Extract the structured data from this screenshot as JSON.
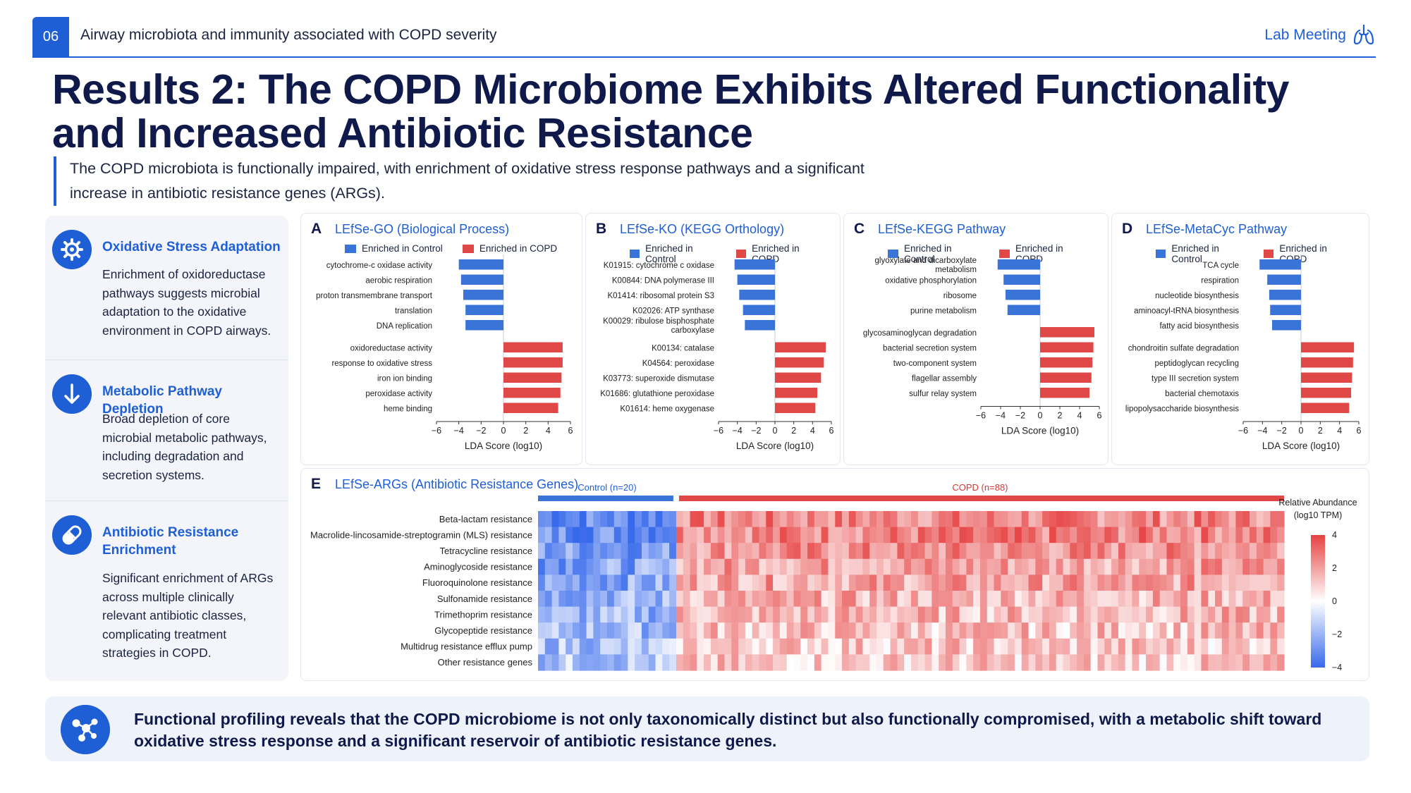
{
  "header": {
    "slide_number": "06",
    "title": "Airway microbiota and immunity associated with COPD severity",
    "right_label": "Lab Meeting",
    "icon": "lungs-icon"
  },
  "title": "Results 2: The COPD Microbiome Exhibits Altered Functionality and Increased Antibiotic Resistance",
  "subtitle": "The COPD microbiota is functionally impaired, with enrichment of oxidative stress response pathways and a significant increase in antibiotic resistance genes (ARGs).",
  "sidebar": [
    {
      "icon": "gear-icon",
      "heading": "Oxidative Stress Adaptation",
      "text": "Enrichment of oxidoreductase pathways suggests microbial adaptation to the oxidative environment in COPD airways."
    },
    {
      "icon": "arrow-down-icon",
      "heading": "Metabolic Pathway Depletion",
      "text": "Broad depletion of core microbial metabolic pathways, including degradation and secretion systems."
    },
    {
      "icon": "pill-icon",
      "heading": "Antibiotic Resistance Enrichment",
      "text": "Significant enrichment of ARGs across multiple clinically relevant antibiotic classes, complicating treatment strategies in COPD."
    }
  ],
  "colors": {
    "control": "#3a74d9",
    "copd": "#e04848",
    "accent": "#1f5fd6",
    "dark": "#101a4a"
  },
  "chart_data": [
    {
      "id": "A",
      "type": "bar",
      "title": "LEfSe-GO (Biological Process)",
      "legend": [
        "Enriched in Control",
        "Enriched in COPD"
      ],
      "xlabel": "LDA Score (log10)",
      "xlim": [
        -6,
        6
      ],
      "xticks": [
        -6,
        -4,
        -2,
        0,
        2,
        4,
        6
      ],
      "categories": [
        "cytochrome-c oxidase activity",
        "aerobic respiration",
        "proton transmembrane transport",
        "translation",
        "DNA replication",
        "oxidoreductase activity",
        "response to oxidative stress",
        "iron ion binding",
        "peroxidase activity",
        "heme binding"
      ],
      "values": [
        -4.0,
        -3.8,
        -3.6,
        -3.4,
        -3.4,
        5.3,
        5.3,
        5.2,
        5.1,
        4.9
      ]
    },
    {
      "id": "B",
      "type": "bar",
      "title": "LEfSe-KO (KEGG Orthology)",
      "legend": [
        "Enriched in Control",
        "Enriched in COPD"
      ],
      "xlabel": "LDA Score (log10)",
      "xlim": [
        -6,
        6
      ],
      "xticks": [
        -6,
        -4,
        -2,
        0,
        2,
        4,
        6
      ],
      "categories": [
        "K01915: cytochrome c oxidase",
        "K00844: DNA polymerase III",
        "K01414: ribosomal protein S3",
        "K02026: ATP synthase",
        "K00029: ribulose bisphosphate carboxylase",
        "K00134: catalase",
        "K04564: peroxidase",
        "K03773: superoxide dismutase",
        "K01686: glutathione peroxidase",
        "K01614: heme oxygenase"
      ],
      "values": [
        -4.3,
        -4.0,
        -3.8,
        -3.4,
        -3.2,
        5.4,
        5.2,
        4.9,
        4.5,
        4.3
      ]
    },
    {
      "id": "C",
      "type": "bar",
      "title": "LEfSe-KEGG Pathway",
      "legend": [
        "Enriched in Control",
        "Enriched in COPD"
      ],
      "xlabel": "LDA Score (log10)",
      "xlim": [
        -6,
        6
      ],
      "xticks": [
        -6,
        -4,
        -2,
        0,
        2,
        4,
        6
      ],
      "categories": [
        "glyoxylate and dicarboxylate metabolism",
        "oxidative phosphorylation",
        "ribosome",
        "purine metabolism",
        "glycosaminoglycan degradation",
        "bacterial secretion system",
        "two-component system",
        "flagellar assembly",
        "sulfur relay system"
      ],
      "values": [
        -4.3,
        -3.7,
        -3.5,
        -3.3,
        5.5,
        5.4,
        5.3,
        5.2,
        5.0
      ]
    },
    {
      "id": "D",
      "type": "bar",
      "title": "LEfSe-MetaCyc Pathway",
      "legend": [
        "Enriched in Control",
        "Enriched in COPD"
      ],
      "xlabel": "LDA Score (log10)",
      "xlim": [
        -6,
        6
      ],
      "xticks": [
        -6,
        -4,
        -2,
        0,
        2,
        4,
        6
      ],
      "categories": [
        "TCA cycle",
        "respiration",
        "nucleotide biosynthesis",
        "aminoacyl-tRNA biosynthesis",
        "fatty acid biosynthesis",
        "chondroitin sulfate degradation",
        "peptidoglycan recycling",
        "type III secretion system",
        "bacterial chemotaxis",
        "lipopolysaccharide biosynthesis"
      ],
      "values": [
        -4.3,
        -3.5,
        -3.3,
        -3.2,
        -3.0,
        5.5,
        5.4,
        5.3,
        5.2,
        5.0
      ]
    },
    {
      "id": "E",
      "type": "heatmap",
      "title": "LEfSe-ARGs (Antibiotic Resistance Genes)",
      "groups": [
        {
          "name": "Control (n=20)",
          "n": 20
        },
        {
          "name": "COPD (n=88)",
          "n": 88
        }
      ],
      "rows": [
        "Beta-lactam resistance",
        "Macrolide-lincosamide-streptogramin (MLS) resistance",
        "Tetracycline resistance",
        "Aminoglycoside resistance",
        "Fluoroquinolone resistance",
        "Sulfonamide resistance",
        "Trimethoprim resistance",
        "Glycopeptide resistance",
        "Multidrug resistance efflux pump",
        "Other resistance genes"
      ],
      "colorbar": {
        "title": "Relative Abundance (log10 TPM)",
        "ticks": [
          "4",
          "2",
          "0",
          "−2",
          "−4"
        ],
        "range": [
          -4,
          4
        ]
      },
      "row_means": {
        "control": [
          -3,
          -2.8,
          -2.5,
          -2.4,
          -2.3,
          -2.0,
          -2.0,
          -1.8,
          -1.6,
          -1.5
        ],
        "copd": [
          2.5,
          2.6,
          2.3,
          2.0,
          1.9,
          1.6,
          1.5,
          1.3,
          1.2,
          1.1
        ]
      }
    }
  ],
  "conclusion": {
    "icon": "network-icon",
    "text": "Functional profiling reveals that the COPD microbiome is not only taxonomically distinct but also functionally compromised, with a metabolic shift toward oxidative stress response and a significant reservoir of antibiotic resistance genes."
  }
}
